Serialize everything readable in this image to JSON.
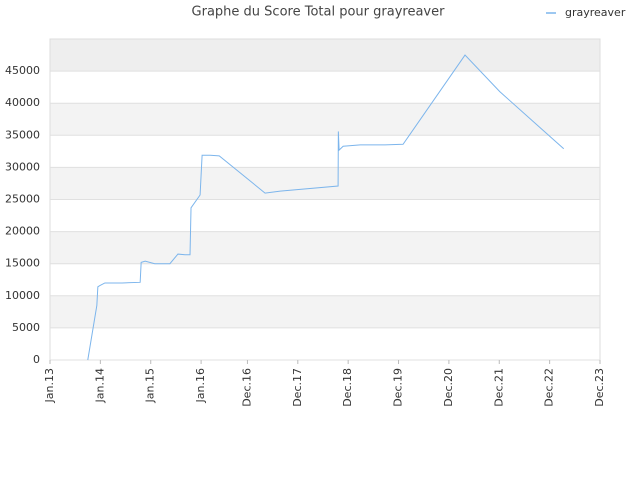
{
  "chart_data": {
    "type": "line",
    "title": "Graphe du Score Total pour grayreaver",
    "x": [
      2013.75,
      2013.93,
      2013.95,
      2013.99,
      2014.09,
      2014.43,
      2014.79,
      2014.81,
      2014.89,
      2015.08,
      2015.38,
      2015.54,
      2015.68,
      2015.78,
      2015.8,
      2015.98,
      2016.02,
      2016.18,
      2016.36,
      2017.27,
      2017.57,
      2018.72,
      2018.725,
      2018.74,
      2018.82,
      2019.16,
      2019.65,
      2020.01,
      2021.24,
      2021.93,
      2023.2
    ],
    "series": [
      {
        "name": "grayreaver",
        "color": "#7cb5ec",
        "values": [
          0,
          8500,
          11400,
          11600,
          12000,
          12000,
          12100,
          15200,
          15400,
          15000,
          15000,
          16500,
          16400,
          16400,
          23700,
          25700,
          31900,
          31900,
          31800,
          26000,
          26300,
          27100,
          35600,
          32700,
          33300,
          33500,
          33500,
          33600,
          47500,
          41800,
          32900
        ]
      }
    ],
    "xlim": [
      2013,
      2023.92
    ],
    "xticks": [
      {
        "value": 2013,
        "label": "Jan.13"
      },
      {
        "value": 2014,
        "label": "Jan.14"
      },
      {
        "value": 2015,
        "label": "Jan.15"
      },
      {
        "value": 2016,
        "label": "Jan.16"
      },
      {
        "value": 2016.92,
        "label": "Dec.16"
      },
      {
        "value": 2017.92,
        "label": "Dec.17"
      },
      {
        "value": 2018.92,
        "label": "Dec.18"
      },
      {
        "value": 2019.92,
        "label": "Dec.19"
      },
      {
        "value": 2020.92,
        "label": "Dec.20"
      },
      {
        "value": 2021.92,
        "label": "Dec.21"
      },
      {
        "value": 2022.92,
        "label": "Dec.22"
      },
      {
        "value": 2023.92,
        "label": "Dec.23"
      }
    ],
    "ylim": [
      0,
      50000
    ],
    "yticks": [
      0,
      5000,
      10000,
      15000,
      20000,
      25000,
      30000,
      35000,
      40000,
      45000
    ],
    "grid": true,
    "legend": "top-right"
  }
}
